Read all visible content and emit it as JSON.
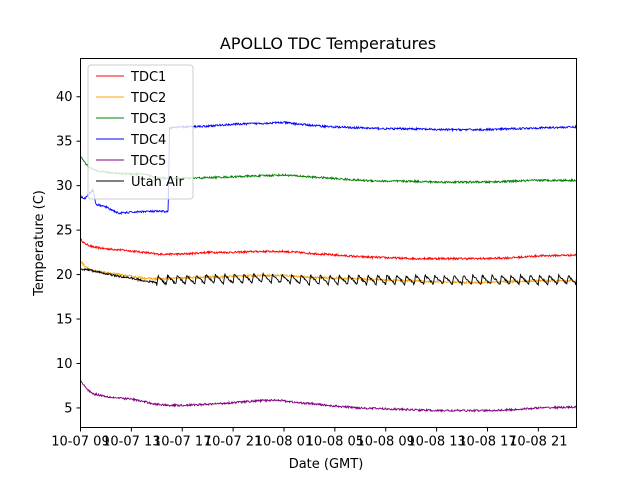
{
  "chart_data": {
    "type": "line",
    "title": "APOLLO TDC Temperatures",
    "xlabel": "Date (GMT)",
    "ylabel": "Temperature (C)",
    "xlim": [
      0,
      39
    ],
    "ylim": [
      2.8,
      44.3
    ],
    "x_unit": "hours since 10-07 09:00 GMT",
    "x_ticks": [
      {
        "x": 0,
        "label": "10-07 09"
      },
      {
        "x": 4,
        "label": "10-07 13"
      },
      {
        "x": 8,
        "label": "10-07 17"
      },
      {
        "x": 12,
        "label": "10-07 21"
      },
      {
        "x": 16,
        "label": "10-08 01"
      },
      {
        "x": 20,
        "label": "10-08 05"
      },
      {
        "x": 24,
        "label": "10-08 09"
      },
      {
        "x": 28,
        "label": "10-08 13"
      },
      {
        "x": 32,
        "label": "10-08 17"
      },
      {
        "x": 36,
        "label": "10-08 21"
      }
    ],
    "y_ticks": [
      5,
      10,
      15,
      20,
      25,
      30,
      35,
      40
    ],
    "legend_position": "top-left",
    "series": [
      {
        "name": "TDC1",
        "color": "#ff0000",
        "points": [
          [
            0,
            24.0
          ],
          [
            0.3,
            23.5
          ],
          [
            1,
            23.1
          ],
          [
            2,
            22.9
          ],
          [
            3,
            22.8
          ],
          [
            5,
            22.5
          ],
          [
            6,
            22.3
          ],
          [
            8,
            22.3
          ],
          [
            10,
            22.5
          ],
          [
            12,
            22.5
          ],
          [
            14,
            22.6
          ],
          [
            16,
            22.6
          ],
          [
            18,
            22.4
          ],
          [
            20,
            22.2
          ],
          [
            22,
            22.0
          ],
          [
            24,
            21.9
          ],
          [
            26,
            21.8
          ],
          [
            28,
            21.8
          ],
          [
            30,
            21.8
          ],
          [
            32,
            21.8
          ],
          [
            34,
            21.9
          ],
          [
            36,
            22.1
          ],
          [
            39,
            22.2
          ]
        ]
      },
      {
        "name": "TDC2",
        "color": "#ffa500",
        "points": [
          [
            0,
            21.6
          ],
          [
            0.3,
            21.0
          ],
          [
            1,
            20.4
          ],
          [
            2,
            20.2
          ],
          [
            3,
            20.0
          ],
          [
            4,
            19.8
          ],
          [
            5,
            19.6
          ],
          [
            6,
            19.5
          ],
          [
            8,
            19.6
          ],
          [
            10,
            19.7
          ],
          [
            12,
            19.8
          ],
          [
            14,
            19.9
          ],
          [
            16,
            19.9
          ],
          [
            18,
            19.7
          ],
          [
            20,
            19.6
          ],
          [
            22,
            19.5
          ],
          [
            24,
            19.4
          ],
          [
            26,
            19.3
          ],
          [
            28,
            19.2
          ],
          [
            30,
            19.1
          ],
          [
            32,
            19.1
          ],
          [
            34,
            19.2
          ],
          [
            36,
            19.3
          ],
          [
            39,
            19.3
          ]
        ]
      },
      {
        "name": "TDC3",
        "color": "#008000",
        "points": [
          [
            0,
            33.3
          ],
          [
            0.5,
            32.3
          ],
          [
            1,
            31.8
          ],
          [
            2,
            31.5
          ],
          [
            3,
            31.4
          ],
          [
            4,
            31.3
          ],
          [
            5,
            31.3
          ],
          [
            6,
            30.9
          ],
          [
            8,
            30.8
          ],
          [
            10,
            30.9
          ],
          [
            12,
            31.0
          ],
          [
            14,
            31.1
          ],
          [
            16,
            31.2
          ],
          [
            18,
            31.0
          ],
          [
            20,
            30.8
          ],
          [
            22,
            30.6
          ],
          [
            24,
            30.5
          ],
          [
            26,
            30.5
          ],
          [
            28,
            30.4
          ],
          [
            30,
            30.4
          ],
          [
            32,
            30.4
          ],
          [
            34,
            30.5
          ],
          [
            36,
            30.6
          ],
          [
            39,
            30.6
          ]
        ]
      },
      {
        "name": "TDC4",
        "color": "#0000ff",
        "points": [
          [
            0,
            28.8
          ],
          [
            0.3,
            28.5
          ],
          [
            0.7,
            29.1
          ],
          [
            1,
            29.6
          ],
          [
            1.2,
            27.9
          ],
          [
            2,
            27.6
          ],
          [
            3,
            26.9
          ],
          [
            4,
            27.0
          ],
          [
            5,
            27.1
          ],
          [
            6,
            27.1
          ],
          [
            6.9,
            27.1
          ],
          [
            7.0,
            36.5
          ],
          [
            8,
            36.6
          ],
          [
            10,
            36.7
          ],
          [
            12,
            36.9
          ],
          [
            14,
            37.0
          ],
          [
            16,
            37.1
          ],
          [
            18,
            36.8
          ],
          [
            20,
            36.6
          ],
          [
            22,
            36.5
          ],
          [
            24,
            36.4
          ],
          [
            26,
            36.4
          ],
          [
            28,
            36.3
          ],
          [
            30,
            36.3
          ],
          [
            32,
            36.3
          ],
          [
            34,
            36.4
          ],
          [
            36,
            36.5
          ],
          [
            39,
            36.6
          ]
        ]
      },
      {
        "name": "TDC5",
        "color": "#800080",
        "points": [
          [
            0,
            8.1
          ],
          [
            0.5,
            7.1
          ],
          [
            1,
            6.6
          ],
          [
            2,
            6.3
          ],
          [
            3,
            6.1
          ],
          [
            4,
            6.0
          ],
          [
            5,
            5.7
          ],
          [
            6,
            5.4
          ],
          [
            7,
            5.3
          ],
          [
            8,
            5.3
          ],
          [
            10,
            5.4
          ],
          [
            12,
            5.6
          ],
          [
            14,
            5.8
          ],
          [
            15.5,
            5.9
          ],
          [
            17,
            5.6
          ],
          [
            18,
            5.5
          ],
          [
            20,
            5.2
          ],
          [
            22,
            5.0
          ],
          [
            24,
            4.9
          ],
          [
            26,
            4.8
          ],
          [
            28,
            4.7
          ],
          [
            30,
            4.7
          ],
          [
            32,
            4.7
          ],
          [
            34,
            4.8
          ],
          [
            36,
            5.0
          ],
          [
            39,
            5.1
          ]
        ]
      },
      {
        "name": "Utah Air",
        "color": "#000000",
        "points": [
          [
            0,
            20.5
          ],
          [
            0.5,
            20.6
          ],
          [
            1,
            20.4
          ],
          [
            2,
            20.1
          ],
          [
            3,
            19.8
          ],
          [
            4,
            19.6
          ],
          [
            5,
            19.3
          ],
          [
            6,
            19.1
          ],
          [
            7,
            19.2
          ],
          [
            8,
            19.2
          ],
          [
            10,
            19.3
          ],
          [
            12,
            19.3
          ],
          [
            14,
            19.4
          ],
          [
            16,
            19.3
          ],
          [
            18,
            19.2
          ],
          [
            20,
            19.2
          ],
          [
            22,
            19.2
          ],
          [
            24,
            19.2
          ],
          [
            26,
            19.2
          ],
          [
            28,
            19.2
          ],
          [
            30,
            19.2
          ],
          [
            32,
            19.2
          ],
          [
            34,
            19.2
          ],
          [
            36,
            19.2
          ],
          [
            39,
            19.2
          ]
        ],
        "sawtooth_from_x": 6,
        "sawtooth_period_h": 0.75,
        "sawtooth_amplitude": 1.0
      }
    ]
  }
}
